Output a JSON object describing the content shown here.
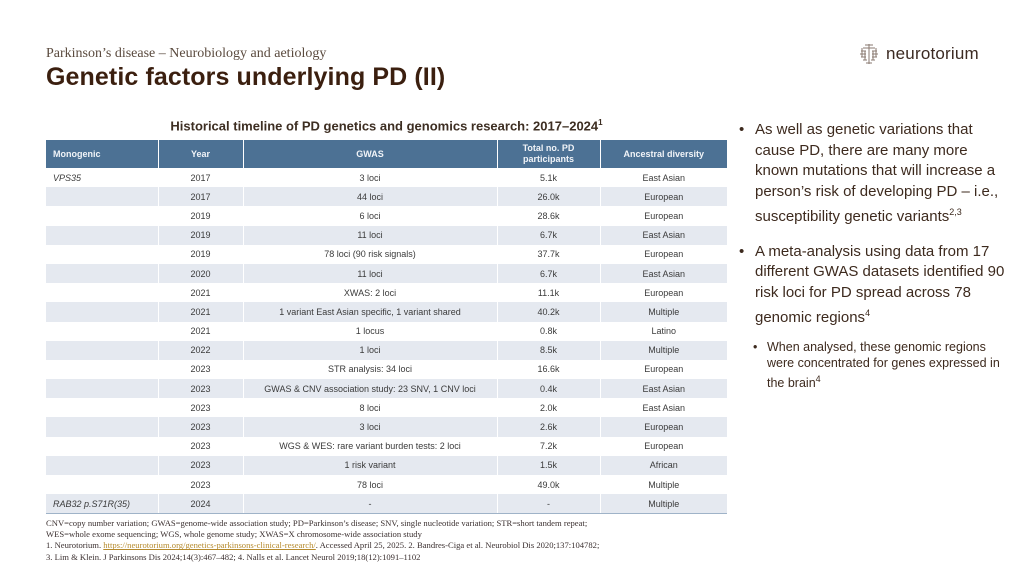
{
  "header": {
    "subtitle": "Parkinson’s disease – Neurobiology and aetiology",
    "title": "Genetic factors underlying PD (II)",
    "logo_text": "neurotorium",
    "logo_icon": "brain-icon"
  },
  "table": {
    "title": "Historical timeline of PD genetics and genomics research: 2017–2024",
    "title_ref": "1",
    "columns": [
      "Monogenic",
      "Year",
      "GWAS",
      "Total no. PD participants",
      "Ancestral diversity"
    ],
    "rows": [
      {
        "monogenic": "VPS35",
        "year": "2017",
        "gwas": "3 loci",
        "total": "5.1k",
        "ancestry": "East Asian"
      },
      {
        "monogenic": "",
        "year": "2017",
        "gwas": "44 loci",
        "total": "26.0k",
        "ancestry": "European"
      },
      {
        "monogenic": "",
        "year": "2019",
        "gwas": "6 loci",
        "total": "28.6k",
        "ancestry": "European"
      },
      {
        "monogenic": "",
        "year": "2019",
        "gwas": "11 loci",
        "total": "6.7k",
        "ancestry": "East Asian"
      },
      {
        "monogenic": "",
        "year": "2019",
        "gwas": "78 loci (90 risk signals)",
        "total": "37.7k",
        "ancestry": "European"
      },
      {
        "monogenic": "",
        "year": "2020",
        "gwas": "11 loci",
        "total": "6.7k",
        "ancestry": "East Asian"
      },
      {
        "monogenic": "",
        "year": "2021",
        "gwas": "XWAS: 2 loci",
        "total": "11.1k",
        "ancestry": "European"
      },
      {
        "monogenic": "",
        "year": "2021",
        "gwas": "1 variant East Asian specific, 1 variant shared",
        "total": "40.2k",
        "ancestry": "Multiple"
      },
      {
        "monogenic": "",
        "year": "2021",
        "gwas": "1 locus",
        "total": "0.8k",
        "ancestry": "Latino"
      },
      {
        "monogenic": "",
        "year": "2022",
        "gwas": "1 loci",
        "total": "8.5k",
        "ancestry": "Multiple"
      },
      {
        "monogenic": "",
        "year": "2023",
        "gwas": "STR analysis: 34 loci",
        "total": "16.6k",
        "ancestry": "European"
      },
      {
        "monogenic": "",
        "year": "2023",
        "gwas": "GWAS & CNV association study: 23 SNV, 1 CNV loci",
        "total": "0.4k",
        "ancestry": "East Asian"
      },
      {
        "monogenic": "",
        "year": "2023",
        "gwas": "8 loci",
        "total": "2.0k",
        "ancestry": "East Asian"
      },
      {
        "monogenic": "",
        "year": "2023",
        "gwas": "3 loci",
        "total": "2.6k",
        "ancestry": "European"
      },
      {
        "monogenic": "",
        "year": "2023",
        "gwas": "WGS & WES: rare variant burden tests: 2 loci",
        "total": "7.2k",
        "ancestry": "European"
      },
      {
        "monogenic": "",
        "year": "2023",
        "gwas": "1 risk variant",
        "total": "1.5k",
        "ancestry": "African"
      },
      {
        "monogenic": "",
        "year": "2023",
        "gwas": "78 loci",
        "total": "49.0k",
        "ancestry": "Multiple"
      },
      {
        "monogenic": "RAB32 p.S71R(35)",
        "year": "2024",
        "gwas": "-",
        "total": "-",
        "ancestry": "Multiple"
      }
    ]
  },
  "bullets": {
    "b1_text": "As well as genetic variations that cause PD, there are many more known mutations that will increase a person’s risk of developing PD – i.e., susceptibility genetic variants",
    "b1_ref": "2,3",
    "b2_text": "A meta-analysis using data from 17 different GWAS datasets identified 90 risk loci for PD spread across 78 genomic regions",
    "b2_ref": "4",
    "b2_sub_text": "When analysed, these genomic regions were concentrated for genes expressed in the brain",
    "b2_sub_ref": "4",
    "bullet_glyph": "•"
  },
  "footnotes": {
    "abbrev_1": "CNV=copy number variation; GWAS=genome-wide association study; PD=Parkinson’s disease; SNV, single nucleotide variation; STR=short tandem repeat;",
    "abbrev_2": "WES=whole exome sequencing; WGS, whole genome study; XWAS=X chromosome-wide association study",
    "ref_1_prefix": "1. Neurotorium. ",
    "ref_1_link": "https://neurotorium.org/genetics-parkinsons-clinical-research/",
    "ref_1_suffix": ". Accessed April 25, 2025. 2. Bandres-Ciga et al. Neurobiol Dis 2020;137:104782;",
    "ref_2": "3. Lim & Klein. J Parkinsons Dis 2024;14(3):467–482; 4. Nalls et al. Lancet Neurol 2019;18(12):1091–1102"
  },
  "colors": {
    "header_bg": "#4c7194",
    "row_alt": "#e5e9f0",
    "title": "#3b1f0f",
    "link": "#b58a2d"
  }
}
